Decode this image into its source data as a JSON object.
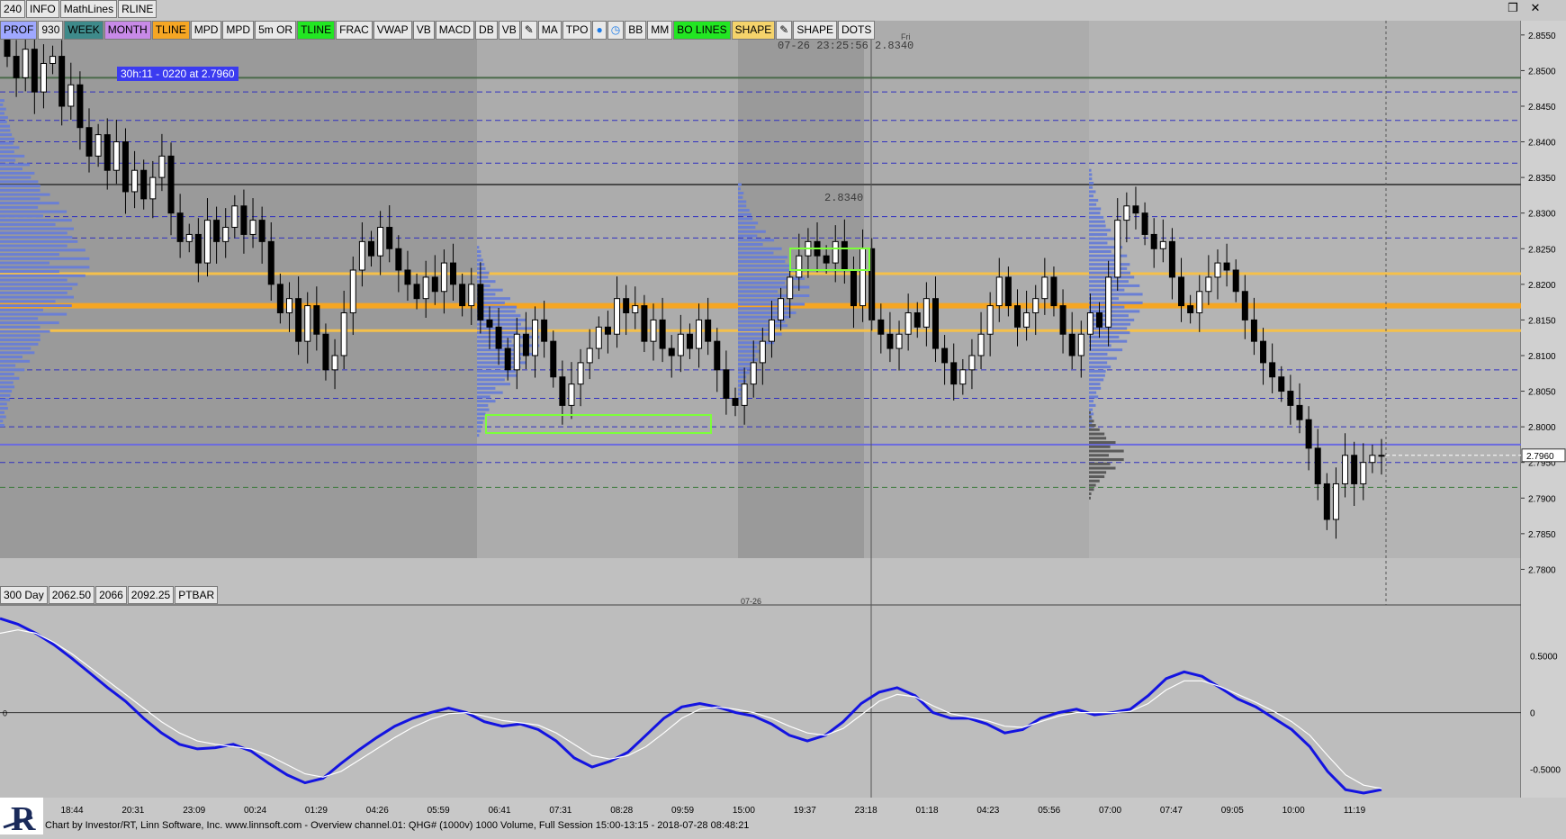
{
  "toolbar_top": {
    "items": [
      "240",
      "INFO",
      "MathLines",
      "RLINE"
    ]
  },
  "toolbar_studies": {
    "items": [
      {
        "label": "PROF",
        "color": "#9fa8ff"
      },
      {
        "label": "930",
        "color": "#e8e8e8"
      },
      {
        "label": "WEEK",
        "color": "#3e8a8a"
      },
      {
        "label": "MONTH",
        "color": "#c88ae8"
      },
      {
        "label": "TLINE",
        "color": "#f5a623"
      },
      {
        "label": "MPD",
        "color": "#e8e8e8"
      },
      {
        "label": "MPD",
        "color": "#e8e8e8"
      },
      {
        "label": "5m OR",
        "color": "#e8e8e8"
      },
      {
        "label": "TLINE",
        "color": "#22e622"
      },
      {
        "label": "FRAC",
        "color": "#e8e8e8"
      },
      {
        "label": "VWAP",
        "color": "#e8e8e8"
      },
      {
        "label": "VB",
        "color": "#e8e8e8"
      },
      {
        "label": "MACD",
        "color": "#e8e8e8"
      },
      {
        "label": "DB",
        "color": "#e8e8e8"
      },
      {
        "label": "VB",
        "color": "#e8e8e8"
      },
      {
        "label": "",
        "color": "#e8e8e8",
        "icon": "pencil-icon"
      },
      {
        "label": "MA",
        "color": "#e8e8e8"
      },
      {
        "label": "TPO",
        "color": "#e8e8e8"
      },
      {
        "label": "",
        "color": "#e8e8e8",
        "icon": "drop-icon"
      },
      {
        "label": "",
        "color": "#e8e8e8",
        "icon": "clock-icon"
      },
      {
        "label": "BB",
        "color": "#e8e8e8"
      },
      {
        "label": "MM",
        "color": "#e8e8e8"
      },
      {
        "label": "BO LINES",
        "color": "#22e622"
      },
      {
        "label": "SHAPE",
        "color": "#f5d36b"
      },
      {
        "label": "",
        "color": "#e8e8e8",
        "icon": "pencil-icon"
      },
      {
        "label": "SHAPE",
        "color": "#e8e8e8"
      },
      {
        "label": "DOTS",
        "color": "#e8e8e8"
      }
    ]
  },
  "toolbar_bottom": {
    "items": [
      "300 Day",
      "2062.50",
      "2066",
      "2092.25",
      "PTBAR"
    ]
  },
  "annotations": {
    "timer": "30h:11  - 0220 at 2.7960",
    "cursor_readout": "07-26 23:25:56  2.8340",
    "cursor_day": "Fri",
    "level_label": "2.8340",
    "date_marker": "07-26",
    "current_price": "2.7960",
    "osc_axis_mark": "0"
  },
  "status_bar": "Chart by Investor/RT, Linn Software, Inc. www.linnsoft.com - Overview channel.01: QHG# (1000v) 1000 Volume, Full Session 15:00-13:15 - 2018-07-28 08:48:21",
  "chart_data": [
    {
      "type": "candlestick",
      "title": "",
      "ylim": [
        2.775,
        2.857
      ],
      "y_ticks": [
        "2.8550",
        "2.8500",
        "2.8450",
        "2.8400",
        "2.8350",
        "2.8300",
        "2.8250",
        "2.8200",
        "2.8150",
        "2.8100",
        "2.8050",
        "2.8000",
        "2.7950",
        "2.7900",
        "2.7850",
        "2.7800"
      ],
      "x_ticks": [
        "18:44",
        "20:31",
        "23:09",
        "00:24",
        "01:29",
        "04:26",
        "05:59",
        "06:41",
        "07:31",
        "08:28",
        "09:59",
        "15:00",
        "19:37",
        "23:18",
        "01:18",
        "04:23",
        "05:56",
        "07:00",
        "07:47",
        "09:05",
        "10:00",
        "11:19"
      ],
      "closes": [
        2.852,
        2.849,
        2.853,
        2.847,
        2.851,
        2.852,
        2.845,
        2.848,
        2.842,
        2.838,
        2.841,
        2.836,
        2.84,
        2.833,
        2.836,
        2.832,
        2.835,
        2.838,
        2.83,
        2.826,
        2.827,
        2.823,
        2.829,
        2.826,
        2.828,
        2.831,
        2.827,
        2.829,
        2.826,
        2.82,
        2.816,
        2.818,
        2.812,
        2.817,
        2.813,
        2.808,
        2.81,
        2.816,
        2.822,
        2.826,
        2.824,
        2.828,
        2.825,
        2.822,
        2.82,
        2.818,
        2.821,
        2.819,
        2.823,
        2.82,
        2.817,
        2.82,
        2.815,
        2.814,
        2.811,
        2.808,
        2.813,
        2.81,
        2.815,
        2.812,
        2.807,
        2.803,
        2.806,
        2.809,
        2.811,
        2.814,
        2.813,
        2.818,
        2.816,
        2.817,
        2.812,
        2.815,
        2.811,
        2.81,
        2.813,
        2.811,
        2.815,
        2.812,
        2.808,
        2.804,
        2.803,
        2.806,
        2.809,
        2.812,
        2.815,
        2.818,
        2.821,
        2.824,
        2.826,
        2.824,
        2.823,
        2.826,
        2.822,
        2.817,
        2.825,
        2.815,
        2.813,
        2.811,
        2.813,
        2.816,
        2.814,
        2.818,
        2.811,
        2.809,
        2.806,
        2.808,
        2.81,
        2.813,
        2.817,
        2.821,
        2.817,
        2.814,
        2.816,
        2.818,
        2.821,
        2.817,
        2.813,
        2.81,
        2.813,
        2.816,
        2.814,
        2.821,
        2.829,
        2.831,
        2.83,
        2.827,
        2.825,
        2.826,
        2.821,
        2.817,
        2.816,
        2.819,
        2.821,
        2.823,
        2.822,
        2.819,
        2.815,
        2.812,
        2.809,
        2.807,
        2.805,
        2.803,
        2.801,
        2.797,
        2.792,
        2.787,
        2.792,
        2.796,
        2.792,
        2.795,
        2.796,
        2.796
      ],
      "reference_levels": [
        {
          "price": 2.849,
          "style": "solid",
          "color": "#4a6a4a"
        },
        {
          "price": 2.847,
          "style": "dashed",
          "color": "#3030c0"
        },
        {
          "price": 2.843,
          "style": "dashed",
          "color": "#3030c0"
        },
        {
          "price": 2.84,
          "style": "dashed",
          "color": "#3030c0"
        },
        {
          "price": 2.837,
          "style": "dashed",
          "color": "#3030c0"
        },
        {
          "price": 2.834,
          "style": "solid",
          "color": "#4a4a4a"
        },
        {
          "price": 2.8295,
          "style": "dashed",
          "color": "#3030c0"
        },
        {
          "price": 2.8265,
          "style": "dashed",
          "color": "#3030c0"
        },
        {
          "price": 2.8215,
          "style": "solid",
          "color": "#f5c04a"
        },
        {
          "price": 2.817,
          "style": "solid",
          "color": "#f5a623"
        },
        {
          "price": 2.8135,
          "style": "solid",
          "color": "#f5c04a"
        },
        {
          "price": 2.808,
          "style": "dashed",
          "color": "#3030c0"
        },
        {
          "price": 2.804,
          "style": "dashed",
          "color": "#3030c0"
        },
        {
          "price": 2.8,
          "style": "dashed",
          "color": "#3030c0"
        },
        {
          "price": 2.7975,
          "style": "solid",
          "color": "#6a6ae0"
        },
        {
          "price": 2.795,
          "style": "dashed",
          "color": "#3030c0"
        },
        {
          "price": 2.7915,
          "style": "dashed",
          "color": "#3a7a3a"
        }
      ]
    },
    {
      "type": "line",
      "title": "",
      "ylim": [
        -0.75,
        0.95
      ],
      "y_ticks": [
        "0.5000",
        "0",
        "-0.5000"
      ],
      "series": [
        {
          "color": "#1414e0",
          "values": [
            0.83,
            0.78,
            0.7,
            0.6,
            0.48,
            0.35,
            0.22,
            0.1,
            -0.05,
            -0.18,
            -0.28,
            -0.32,
            -0.31,
            -0.28,
            -0.34,
            -0.45,
            -0.55,
            -0.62,
            -0.58,
            -0.45,
            -0.33,
            -0.22,
            -0.12,
            -0.05,
            0.0,
            0.04,
            0.0,
            -0.08,
            -0.12,
            -0.1,
            -0.15,
            -0.25,
            -0.4,
            -0.48,
            -0.43,
            -0.35,
            -0.2,
            -0.05,
            0.05,
            0.08,
            0.05,
            0.0,
            -0.03,
            -0.1,
            -0.2,
            -0.25,
            -0.2,
            -0.08,
            0.08,
            0.18,
            0.22,
            0.15,
            0.0,
            -0.05,
            -0.05,
            -0.1,
            -0.18,
            -0.15,
            -0.05,
            0.0,
            0.03,
            -0.02,
            0.0,
            0.03,
            0.15,
            0.3,
            0.36,
            0.32,
            0.22,
            0.12,
            0.05,
            -0.05,
            -0.15,
            -0.3,
            -0.52,
            -0.68,
            -0.71,
            -0.68
          ]
        },
        {
          "color": "#ffffff",
          "values": [
            0.7,
            0.73,
            0.7,
            0.62,
            0.52,
            0.4,
            0.28,
            0.16,
            0.04,
            -0.08,
            -0.18,
            -0.25,
            -0.28,
            -0.3,
            -0.32,
            -0.38,
            -0.46,
            -0.54,
            -0.57,
            -0.52,
            -0.42,
            -0.32,
            -0.22,
            -0.13,
            -0.06,
            -0.01,
            0.0,
            -0.03,
            -0.07,
            -0.09,
            -0.11,
            -0.18,
            -0.28,
            -0.38,
            -0.41,
            -0.38,
            -0.3,
            -0.18,
            -0.05,
            0.03,
            0.05,
            0.03,
            0.0,
            -0.05,
            -0.12,
            -0.18,
            -0.2,
            -0.14,
            -0.02,
            0.1,
            0.16,
            0.14,
            0.06,
            -0.01,
            -0.04,
            -0.07,
            -0.12,
            -0.13,
            -0.08,
            -0.03,
            0.0,
            0.0,
            0.0,
            0.01,
            0.08,
            0.2,
            0.28,
            0.28,
            0.23,
            0.16,
            0.09,
            0.01,
            -0.08,
            -0.2,
            -0.38,
            -0.55,
            -0.64,
            -0.67
          ]
        }
      ]
    }
  ],
  "colors": {
    "bull_candle": "#ffffff",
    "bear_candle": "#000000",
    "profile": "#6a7fd4",
    "profile_dark": "#5a5a5a",
    "yellow_lvl": "#f5a623",
    "blue_dash": "#3030c0"
  }
}
